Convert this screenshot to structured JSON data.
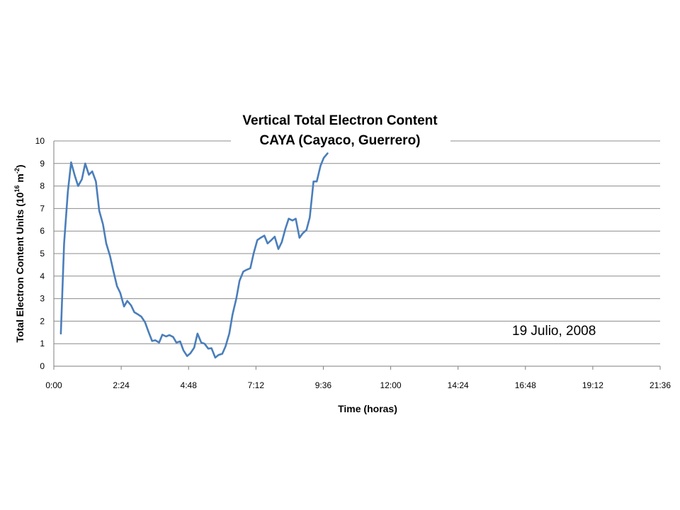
{
  "chart_data": {
    "type": "line",
    "title": "Vertical Total Electron Content",
    "subtitle": "CAYA (Cayaco, Guerrero)",
    "xlabel": "Time (horas)",
    "ylabel": {
      "base": "Total Electron Content Units (10",
      "exp1": "16",
      "mid": " m",
      "exp2": "-2",
      "end": ")"
    },
    "annotation": "19 Julio, 2008",
    "xlim": [
      0,
      1296
    ],
    "ylim": [
      0,
      10
    ],
    "grid": true,
    "legend": "none",
    "x_ticks": [
      {
        "value": 0,
        "label": "0:00"
      },
      {
        "value": 144,
        "label": "2:24"
      },
      {
        "value": 288,
        "label": "4:48"
      },
      {
        "value": 432,
        "label": "7:12"
      },
      {
        "value": 576,
        "label": "9:36"
      },
      {
        "value": 720,
        "label": "12:00"
      },
      {
        "value": 864,
        "label": "14:24"
      },
      {
        "value": 1008,
        "label": "16:48"
      },
      {
        "value": 1152,
        "label": "19:12"
      },
      {
        "value": 1296,
        "label": "21:36"
      }
    ],
    "y_ticks": [
      0,
      1,
      2,
      3,
      4,
      5,
      6,
      7,
      8,
      9,
      10
    ],
    "series": [
      {
        "color": "#4a7ebb",
        "points": [
          [
            "0:15",
            1.45
          ],
          [
            "0:22",
            5.45
          ],
          [
            "0:30",
            7.75
          ],
          [
            "0:37",
            9.05
          ],
          [
            "0:45",
            8.45
          ],
          [
            "0:52",
            8.0
          ],
          [
            "1:00",
            8.3
          ],
          [
            "1:07",
            9.0
          ],
          [
            "1:15",
            8.5
          ],
          [
            "1:22",
            8.65
          ],
          [
            "1:30",
            8.2
          ],
          [
            "1:37",
            6.9
          ],
          [
            "1:45",
            6.3
          ],
          [
            "1:52",
            5.45
          ],
          [
            "2:00",
            4.9
          ],
          [
            "2:07",
            4.25
          ],
          [
            "2:15",
            3.55
          ],
          [
            "2:22",
            3.25
          ],
          [
            "2:30",
            2.65
          ],
          [
            "2:37",
            2.9
          ],
          [
            "2:45",
            2.7
          ],
          [
            "2:52",
            2.4
          ],
          [
            "3:00",
            2.3
          ],
          [
            "3:07",
            2.2
          ],
          [
            "3:15",
            1.95
          ],
          [
            "3:22",
            1.55
          ],
          [
            "3:30",
            1.12
          ],
          [
            "3:37",
            1.15
          ],
          [
            "3:45",
            1.05
          ],
          [
            "3:52",
            1.4
          ],
          [
            "4:00",
            1.32
          ],
          [
            "4:07",
            1.38
          ],
          [
            "4:15",
            1.3
          ],
          [
            "4:22",
            1.05
          ],
          [
            "4:30",
            1.1
          ],
          [
            "4:37",
            0.7
          ],
          [
            "4:45",
            0.45
          ],
          [
            "4:52",
            0.58
          ],
          [
            "5:00",
            0.82
          ],
          [
            "5:07",
            1.45
          ],
          [
            "5:15",
            1.05
          ],
          [
            "5:22",
            1.0
          ],
          [
            "5:30",
            0.78
          ],
          [
            "5:37",
            0.8
          ],
          [
            "5:45",
            0.38
          ],
          [
            "5:52",
            0.5
          ],
          [
            "6:00",
            0.55
          ],
          [
            "6:07",
            0.88
          ],
          [
            "6:15",
            1.45
          ],
          [
            "6:22",
            2.3
          ],
          [
            "6:30",
            3.0
          ],
          [
            "6:37",
            3.8
          ],
          [
            "6:45",
            4.2
          ],
          [
            "6:52",
            4.28
          ],
          [
            "7:00",
            4.35
          ],
          [
            "7:07",
            5.0
          ],
          [
            "7:15",
            5.6
          ],
          [
            "7:22",
            5.7
          ],
          [
            "7:30",
            5.8
          ],
          [
            "7:37",
            5.45
          ],
          [
            "7:45",
            5.6
          ],
          [
            "7:52",
            5.75
          ],
          [
            "8:00",
            5.2
          ],
          [
            "8:07",
            5.5
          ],
          [
            "8:15",
            6.1
          ],
          [
            "8:22",
            6.55
          ],
          [
            "8:30",
            6.47
          ],
          [
            "8:37",
            6.55
          ],
          [
            "8:45",
            5.7
          ],
          [
            "8:52",
            5.9
          ],
          [
            "9:00",
            6.05
          ],
          [
            "9:07",
            6.6
          ],
          [
            "9:15",
            8.2
          ],
          [
            "9:22",
            8.2
          ],
          [
            "9:30",
            8.9
          ],
          [
            "9:37",
            9.25
          ],
          [
            "9:45",
            9.45
          ]
        ]
      }
    ]
  }
}
